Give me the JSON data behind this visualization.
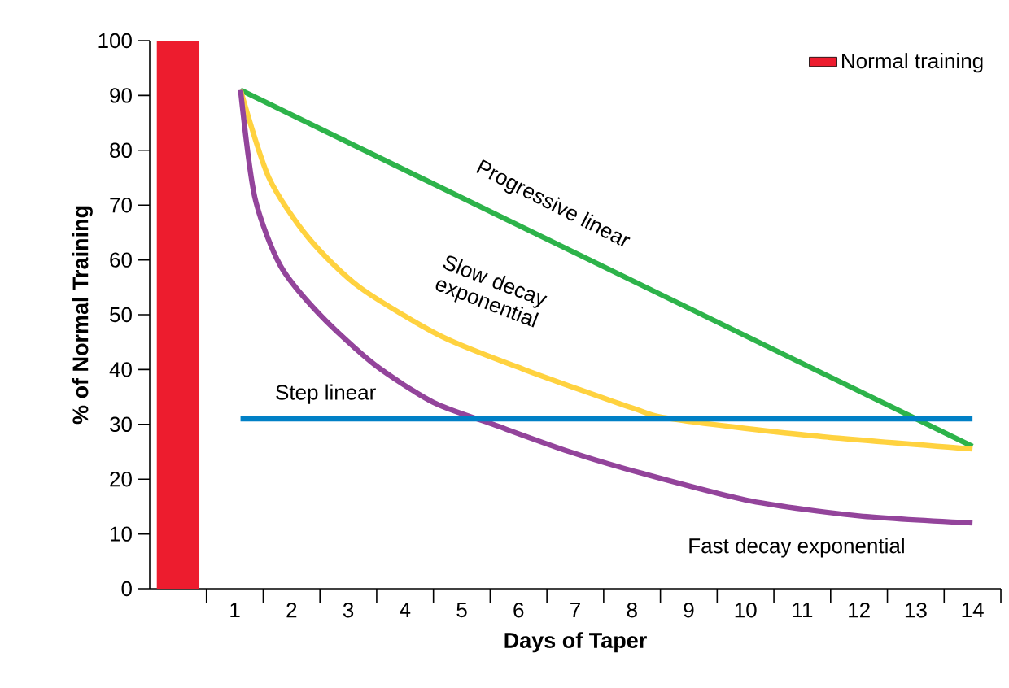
{
  "chart_data": {
    "type": "line",
    "xlabel": "Days of Taper",
    "ylabel": "% of Normal Training",
    "xlim": [
      -0.5,
      14.5
    ],
    "ylim": [
      0,
      100
    ],
    "xticks": [
      {
        "value": 0.5,
        "label": null
      },
      {
        "value": 1,
        "label": "1"
      },
      {
        "value": 1.5,
        "label": null
      },
      {
        "value": 2,
        "label": "2"
      },
      {
        "value": 2.5,
        "label": null
      },
      {
        "value": 3,
        "label": "3"
      },
      {
        "value": 3.5,
        "label": null
      },
      {
        "value": 4,
        "label": "4"
      },
      {
        "value": 4.5,
        "label": null
      },
      {
        "value": 5,
        "label": "5"
      },
      {
        "value": 5.5,
        "label": null
      },
      {
        "value": 6,
        "label": "6"
      },
      {
        "value": 6.5,
        "label": null
      },
      {
        "value": 7,
        "label": "7"
      },
      {
        "value": 7.5,
        "label": null
      },
      {
        "value": 8,
        "label": "8"
      },
      {
        "value": 8.5,
        "label": null
      },
      {
        "value": 9,
        "label": "9"
      },
      {
        "value": 9.5,
        "label": null
      },
      {
        "value": 10,
        "label": "10"
      },
      {
        "value": 10.5,
        "label": null
      },
      {
        "value": 11,
        "label": "11"
      },
      {
        "value": 11.5,
        "label": null
      },
      {
        "value": 12,
        "label": "12"
      },
      {
        "value": 12.5,
        "label": null
      },
      {
        "value": 13,
        "label": "13"
      },
      {
        "value": 13.5,
        "label": null
      },
      {
        "value": 14,
        "label": "14"
      },
      {
        "value": 14.5,
        "label": null
      }
    ],
    "yticks": [
      0,
      10,
      20,
      30,
      40,
      50,
      60,
      70,
      80,
      90,
      100
    ],
    "legend": "top right",
    "grid": false,
    "series": [
      {
        "name": "Normal training",
        "type": "bar",
        "color": "#ed1c2e",
        "x": [
          0
        ],
        "values": [
          100
        ]
      },
      {
        "name": "Progressive linear",
        "color": "#2db34a",
        "x": [
          1.1,
          14
        ],
        "values": [
          91,
          26
        ]
      },
      {
        "name": "Slow decay exponential",
        "color": "#ffd23f",
        "x": [
          1.1,
          1.6,
          2.3,
          3.2,
          4.65,
          6.1,
          8,
          8.7,
          11.1,
          14
        ],
        "values": [
          91,
          75,
          64,
          55,
          46,
          40,
          33,
          31,
          28,
          25.5
        ]
      },
      {
        "name": "Fast decay exponential",
        "color": "#93449b",
        "x": [
          1.1,
          1.35,
          1.8,
          2.5,
          3.45,
          4.5,
          5.55,
          6.9,
          8.2,
          10.1,
          12,
          14
        ],
        "values": [
          91,
          71.5,
          59,
          50,
          41,
          34,
          30,
          25,
          21,
          16,
          13.3,
          12
        ]
      },
      {
        "name": "Step linear",
        "color": "#0080c6",
        "x": [
          1.1,
          14
        ],
        "values": [
          31,
          31
        ]
      }
    ]
  }
}
